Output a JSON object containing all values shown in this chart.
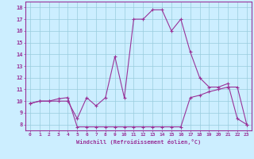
{
  "xlabel": "Windchill (Refroidissement éolien,°C)",
  "bg_color": "#cceeff",
  "line_color": "#993399",
  "xlim": [
    -0.5,
    23.5
  ],
  "ylim": [
    7.5,
    18.5
  ],
  "xticks": [
    0,
    1,
    2,
    3,
    4,
    5,
    6,
    7,
    8,
    9,
    10,
    11,
    12,
    13,
    14,
    15,
    16,
    17,
    18,
    19,
    20,
    21,
    22,
    23
  ],
  "yticks": [
    8,
    9,
    10,
    11,
    12,
    13,
    14,
    15,
    16,
    17,
    18
  ],
  "line1_x": [
    0,
    1,
    2,
    3,
    4,
    5,
    6,
    7,
    8,
    9,
    10,
    11,
    12,
    13,
    14,
    15,
    16,
    17,
    18,
    19,
    20,
    21,
    22,
    23
  ],
  "line1_y": [
    9.8,
    10.0,
    10.0,
    10.0,
    10.0,
    8.5,
    10.3,
    9.6,
    10.3,
    13.8,
    10.3,
    17.0,
    17.0,
    17.8,
    17.8,
    16.0,
    17.0,
    14.2,
    12.0,
    11.2,
    11.2,
    11.5,
    8.5,
    8.0
  ],
  "line2_x": [
    0,
    1,
    2,
    3,
    4,
    5,
    6,
    7,
    8,
    9,
    10,
    11,
    12,
    13,
    14,
    15,
    16,
    17,
    18,
    19,
    20,
    21,
    22,
    23
  ],
  "line2_y": [
    9.8,
    10.0,
    10.0,
    10.2,
    10.3,
    7.8,
    7.8,
    7.8,
    7.8,
    7.8,
    7.8,
    7.8,
    7.8,
    7.8,
    7.8,
    7.8,
    7.8,
    10.3,
    10.5,
    10.8,
    11.0,
    11.2,
    11.2,
    8.0
  ],
  "grid_color": "#99ccdd",
  "marker": "+"
}
